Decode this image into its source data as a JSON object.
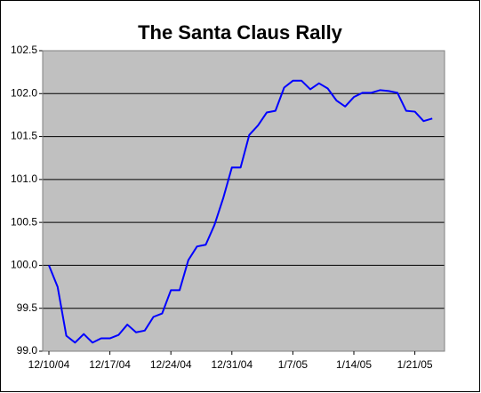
{
  "chart_data": {
    "type": "line",
    "title": "The Santa Claus Rally",
    "categories": [
      "12/10/04",
      null,
      null,
      null,
      null,
      null,
      null,
      "12/17/04",
      null,
      null,
      null,
      null,
      null,
      null,
      "12/24/04",
      null,
      null,
      null,
      null,
      null,
      null,
      "12/31/04",
      null,
      null,
      null,
      null,
      null,
      null,
      "1/7/05",
      null,
      null,
      null,
      null,
      null,
      null,
      "1/14/05",
      null,
      null,
      null,
      null,
      null,
      null,
      "1/21/05",
      null,
      null
    ],
    "series": [
      {
        "color": "#0000ff",
        "values": [
          100.0,
          99.75,
          99.18,
          99.1,
          99.2,
          99.1,
          99.15,
          99.15,
          99.19,
          99.31,
          99.22,
          99.24,
          99.4,
          99.44,
          99.71,
          99.71,
          100.06,
          100.22,
          100.24,
          100.47,
          100.78,
          101.14,
          101.14,
          101.52,
          101.63,
          101.78,
          101.8,
          102.07,
          102.15,
          102.15,
          102.05,
          102.12,
          102.06,
          101.92,
          101.85,
          101.96,
          102.01,
          102.01,
          102.04,
          102.03,
          102.01,
          101.8,
          101.79,
          101.68,
          101.71
        ]
      }
    ],
    "ylim": [
      99.0,
      102.5
    ],
    "yticks": [
      {
        "value": 99.0,
        "label": "99.0"
      },
      99.5,
      {
        "value": 100.0,
        "label": "100.0"
      },
      100.5,
      {
        "value": 101.0,
        "label": "101.0"
      },
      101.5,
      {
        "value": 102.0,
        "label": "102.0"
      },
      102.5
    ],
    "grid": true
  }
}
